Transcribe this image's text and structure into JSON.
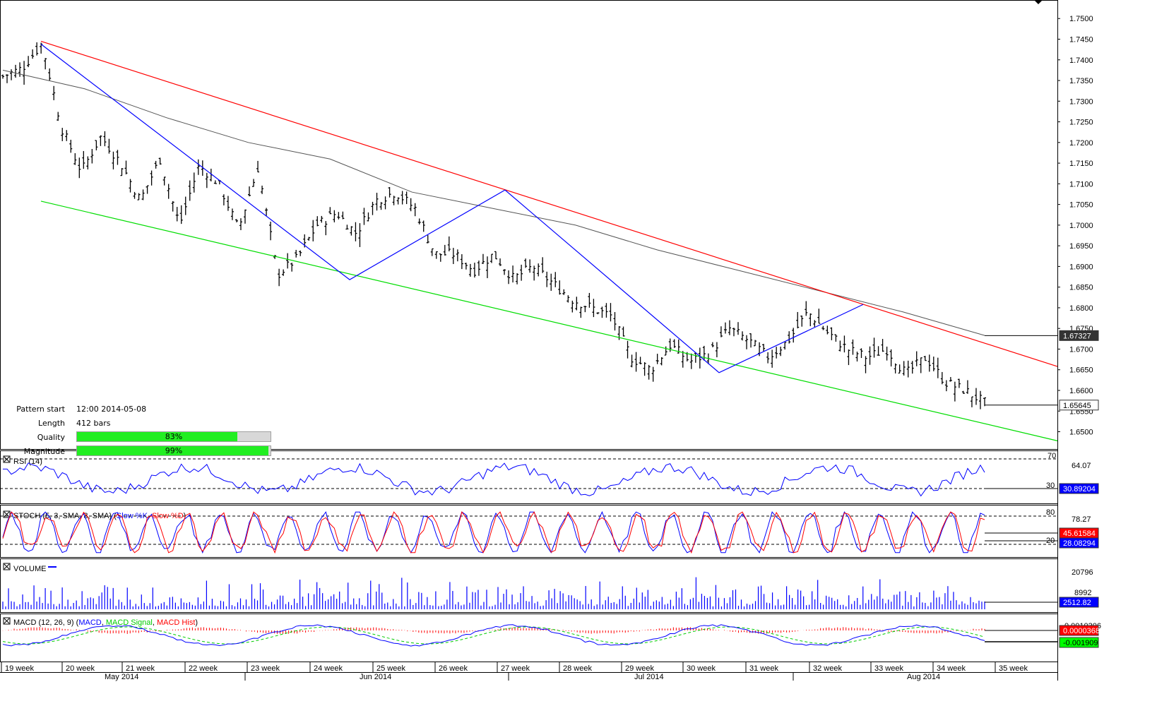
{
  "chart_data": {
    "type": "candlestick",
    "instrument_note": "",
    "y_axis_ticks": [
      "1.7500",
      "1.7450",
      "1.7400",
      "1.7350",
      "1.7300",
      "1.7250",
      "1.7200",
      "1.7150",
      "1.7100",
      "1.7050",
      "1.7000",
      "1.6950",
      "1.6900",
      "1.6850",
      "1.6800",
      "1.6750",
      "1.6700",
      "1.6650",
      "1.6600",
      "1.6550",
      "1.6500"
    ],
    "ylim": [
      1.6465,
      1.7538
    ],
    "price_path": [
      1.736,
      1.738,
      1.744,
      1.7235,
      1.713,
      1.7215,
      1.715,
      1.706,
      1.716,
      1.7,
      1.7145,
      1.71,
      1.699,
      1.714,
      1.688,
      1.692,
      1.7,
      1.703,
      1.698,
      1.706,
      1.708,
      1.704,
      1.693,
      1.693,
      1.689,
      1.693,
      1.687,
      1.69,
      1.686,
      1.682,
      1.68,
      1.678,
      1.668,
      1.665,
      1.671,
      1.667,
      1.669,
      1.675,
      1.672,
      1.668,
      1.672,
      1.679,
      1.674,
      1.67,
      1.668,
      1.67,
      1.664,
      1.668,
      1.662,
      1.66,
      1.657
    ],
    "last_price_label": "1.65645",
    "moving_average_label": "1.67327",
    "moving_average_path": [
      1.7375,
      1.733,
      1.726,
      1.72,
      1.716,
      1.708,
      1.704,
      1.7,
      1.694,
      1.689,
      1.684,
      1.679,
      1.6733
    ],
    "trendlines": [
      {
        "name": "resistance",
        "color": "#ff0000",
        "from": [
          1.7445,
          0
        ],
        "to": [
          1.6658,
          1
        ]
      },
      {
        "name": "support",
        "color": "#00dd00",
        "from": [
          1.7058,
          0
        ],
        "to": [
          1.6478,
          1
        ]
      },
      {
        "name": "pattern",
        "color": "#0000ff",
        "points": [
          1.7438,
          1.6868,
          1.7085,
          1.6643,
          1.6808
        ]
      }
    ],
    "x_week_labels": [
      "19 week",
      "20 week",
      "21 week",
      "22 week",
      "23 week",
      "24 week",
      "25 week",
      "26 week",
      "27 week",
      "28 week",
      "29 week",
      "30 week",
      "31 week",
      "32 week",
      "33 week",
      "34 week",
      "35 week"
    ],
    "x_month_labels": [
      "May 2014",
      "Jun 2014",
      "Jul 2014",
      "Aug 2014"
    ],
    "indicators": {
      "rsi": {
        "title": "RSI (14)",
        "tick_labels": [
          "70",
          "64.07",
          "30"
        ],
        "value_label": "30.89204",
        "levels": [
          70,
          30
        ]
      },
      "stoch": {
        "title_prefix": "STOCH (5, 3, SMA, 3, SMA)",
        "slow_k": "Slow %K",
        "slow_d": "Slow %D",
        "tick_labels": [
          "80",
          "78.27",
          "20"
        ],
        "k_label": "45.61584",
        "d_label": "28.08294",
        "levels": [
          80,
          20
        ]
      },
      "volume": {
        "title": "VOLUME",
        "tick_labels": [
          "20796",
          "8992"
        ],
        "value_label": "2512.82"
      },
      "macd": {
        "title_prefix": "MACD (12, 26, 9)",
        "macd": "MACD",
        "signal": "MACD Signal",
        "hist": "MACD Hist",
        "tick_label": "0.0010306",
        "macd_label": "0.0000368",
        "signal_label": "-0.001909"
      }
    },
    "colors": {
      "up_down_bars": "#000000",
      "moving_average": "#555555",
      "rsi": "#0000ff",
      "stoch_k": "#0000ff",
      "stoch_d": "#ff0000",
      "volume": "#0000ff",
      "macd": "#0000ff",
      "macd_signal": "#00cc00",
      "macd_hist": "#ff0000",
      "label_red": "#ff0000",
      "label_blue": "#0000ff",
      "label_green": "#00ff00",
      "label_dark": "#333333"
    }
  },
  "pattern_info": {
    "start_key": "Pattern start",
    "start_value": "12:00 2014-05-08",
    "length_key": "Length",
    "length_value": "412 bars",
    "quality_key": "Quality",
    "quality_value": "83%",
    "quality_fraction": 0.83,
    "magnitude_key": "Magnitude",
    "magnitude_value": "99%",
    "magnitude_fraction": 0.99
  }
}
